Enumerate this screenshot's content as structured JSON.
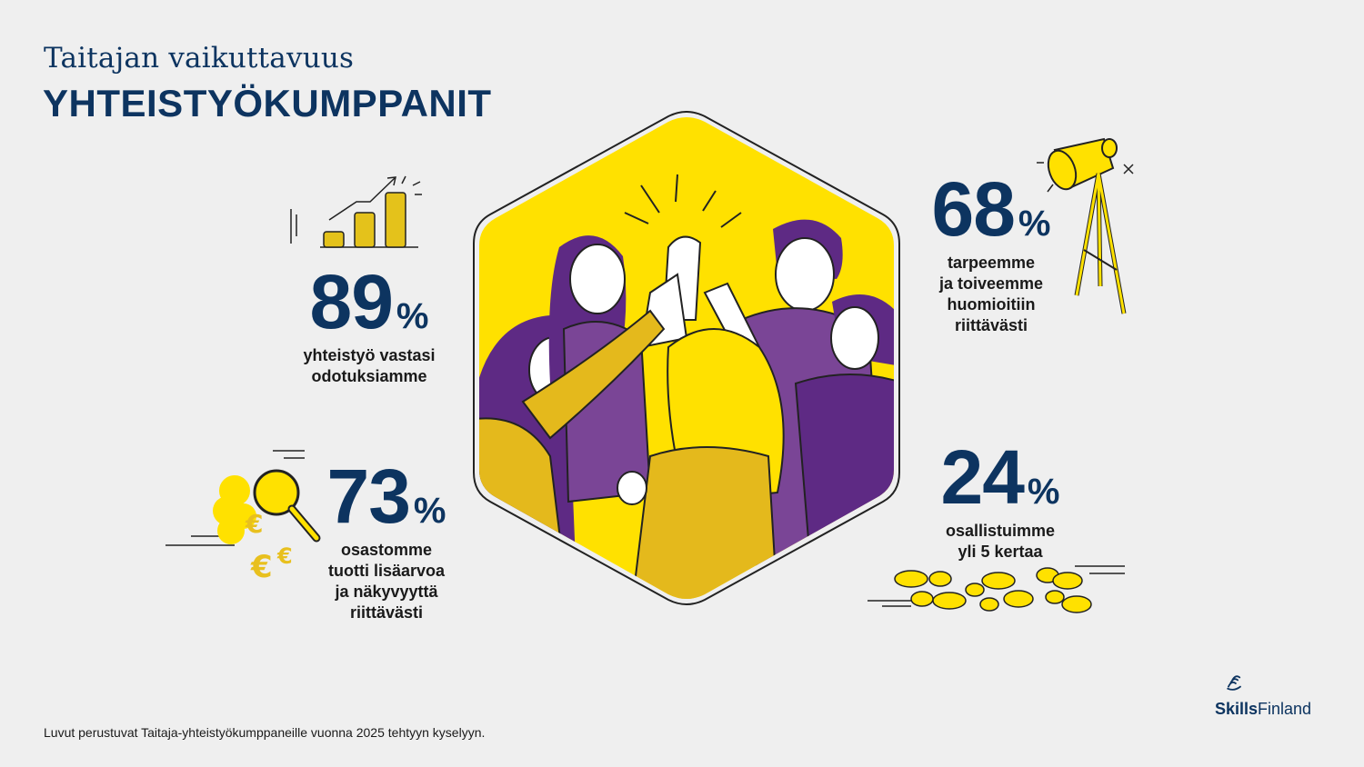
{
  "header": {
    "supertitle": "Taitajan vaikuttavuus",
    "title": "YHTEISTYÖKUMPPANIT"
  },
  "stats": [
    {
      "value": "89",
      "unit": "%",
      "lines": [
        "yhteistyö vastasi",
        "odotuksiamme"
      ]
    },
    {
      "value": "68",
      "unit": "%",
      "lines": [
        "tarpeemme",
        "ja toiveemme",
        "huomioitiin",
        "riittävästi"
      ]
    },
    {
      "value": "73",
      "unit": "%",
      "lines": [
        "osastomme",
        "tuotti lisäarvoa",
        "ja näkyvyyttä",
        "riittävästi"
      ]
    },
    {
      "value": "24",
      "unit": "%",
      "lines": [
        "osallistuimme",
        "yli 5 kertaa"
      ]
    }
  ],
  "footnote": "Luvut perustuvat Taitaja-yhteistyökumppaneille vuonna 2025 tehtyyn kyselyyn.",
  "logo": {
    "bold": "Skills",
    "regular": "Finland"
  },
  "colors": {
    "navy": "#0d3460",
    "yellow": "#ffe100",
    "gold": "#e8c01e",
    "purple": "#5e2a84",
    "background": "#efefef"
  },
  "icons": [
    "bar-chart-icon",
    "spotlight-icon",
    "magnifier-euro-icon",
    "footprints-icon",
    "high-five-illustration",
    "skills-finland-logo-icon"
  ]
}
